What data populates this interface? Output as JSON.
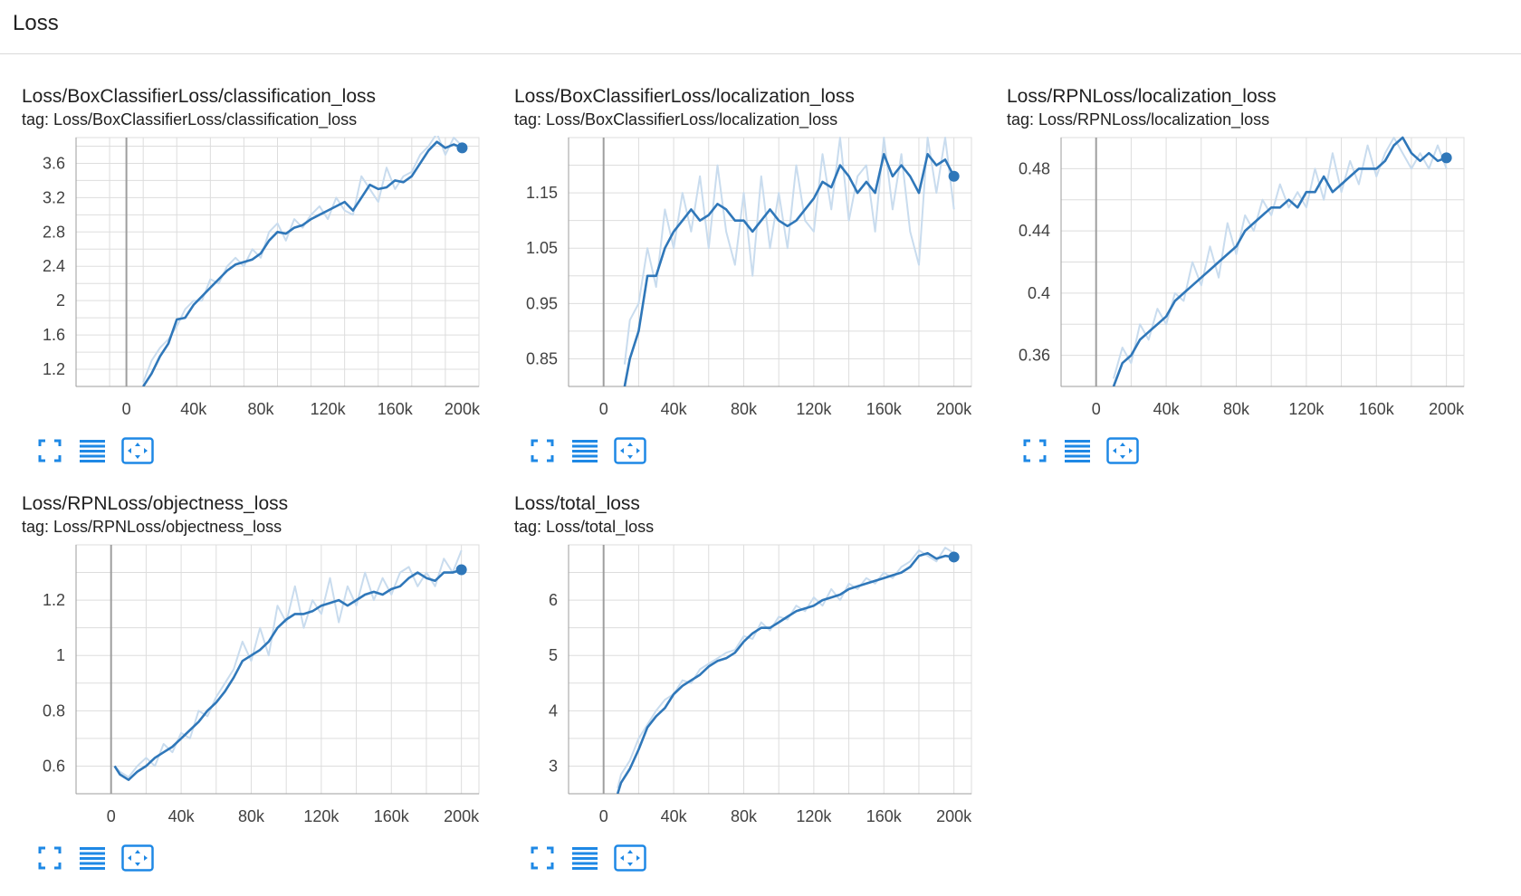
{
  "header": {
    "title": "Loss"
  },
  "colors": {
    "line": "#2f77b9",
    "line_raw": "#c9dcee",
    "grid": "#dddddd",
    "axis": "#9e9e9e",
    "icon": "#1e88e5"
  },
  "icons": [
    "fit-domain-icon",
    "toggle-y-log-icon",
    "expand-chart-icon"
  ],
  "chart_data": [
    {
      "type": "line",
      "title": "Loss/BoxClassifierLoss/classification_loss",
      "tag": "tag: Loss/BoxClassifierLoss/classification_loss",
      "xlim": [
        -30000,
        210000
      ],
      "ylim": [
        1.0,
        3.9
      ],
      "xticks": [
        0,
        40000,
        80000,
        120000,
        160000,
        200000
      ],
      "xtick_labels": [
        "0",
        "40k",
        "80k",
        "120k",
        "160k",
        "200k"
      ],
      "yticks": [
        1.2,
        1.6,
        2.0,
        2.4,
        2.8,
        3.2,
        3.6
      ],
      "ytick_labels": [
        "1.2",
        "1.6",
        "2",
        "2.4",
        "2.8",
        "3.2",
        "3.6"
      ],
      "series": [
        {
          "smoothed": true,
          "x": [
            10000,
            15000,
            20000,
            25000,
            30000,
            35000,
            40000,
            45000,
            50000,
            55000,
            60000,
            65000,
            70000,
            75000,
            80000,
            85000,
            90000,
            95000,
            100000,
            105000,
            110000,
            115000,
            120000,
            125000,
            130000,
            135000,
            140000,
            145000,
            150000,
            155000,
            160000,
            165000,
            170000,
            175000,
            180000,
            185000,
            190000,
            195000,
            200000
          ],
          "y": [
            1.0,
            1.15,
            1.35,
            1.5,
            1.78,
            1.8,
            1.95,
            2.05,
            2.15,
            2.25,
            2.35,
            2.42,
            2.45,
            2.48,
            2.55,
            2.7,
            2.8,
            2.78,
            2.85,
            2.88,
            2.95,
            3.0,
            3.05,
            3.1,
            3.15,
            3.05,
            3.2,
            3.35,
            3.3,
            3.32,
            3.4,
            3.38,
            3.45,
            3.6,
            3.75,
            3.85,
            3.78,
            3.82,
            3.78
          ]
        },
        {
          "smoothed": false,
          "x": [
            10000,
            15000,
            20000,
            25000,
            30000,
            35000,
            40000,
            45000,
            50000,
            55000,
            60000,
            65000,
            70000,
            75000,
            80000,
            85000,
            90000,
            95000,
            100000,
            105000,
            110000,
            115000,
            120000,
            125000,
            130000,
            135000,
            140000,
            145000,
            150000,
            155000,
            160000,
            165000,
            170000,
            175000,
            180000,
            185000,
            190000,
            195000,
            200000
          ],
          "y": [
            1.05,
            1.3,
            1.45,
            1.55,
            1.7,
            1.9,
            2.0,
            2.0,
            2.25,
            2.2,
            2.4,
            2.5,
            2.4,
            2.6,
            2.5,
            2.8,
            2.9,
            2.7,
            2.95,
            2.85,
            3.0,
            3.1,
            2.95,
            3.2,
            3.05,
            3.0,
            3.45,
            3.3,
            3.15,
            3.55,
            3.3,
            3.45,
            3.5,
            3.7,
            3.8,
            3.95,
            3.7,
            3.9,
            3.8
          ]
        }
      ]
    },
    {
      "type": "line",
      "title": "Loss/BoxClassifierLoss/localization_loss",
      "tag": "tag: Loss/BoxClassifierLoss/localization_loss",
      "xlim": [
        -20000,
        210000
      ],
      "ylim": [
        0.8,
        1.25
      ],
      "xticks": [
        0,
        40000,
        80000,
        120000,
        160000,
        200000
      ],
      "xtick_labels": [
        "0",
        "40k",
        "80k",
        "120k",
        "160k",
        "200k"
      ],
      "yticks": [
        0.85,
        0.95,
        1.05,
        1.15
      ],
      "ytick_labels": [
        "0.85",
        "0.95",
        "1.05",
        "1.15"
      ],
      "series": [
        {
          "smoothed": true,
          "x": [
            12000,
            15000,
            20000,
            25000,
            30000,
            35000,
            40000,
            45000,
            50000,
            55000,
            60000,
            65000,
            70000,
            75000,
            80000,
            85000,
            90000,
            95000,
            100000,
            105000,
            110000,
            115000,
            120000,
            125000,
            130000,
            135000,
            140000,
            145000,
            150000,
            155000,
            160000,
            165000,
            170000,
            175000,
            180000,
            185000,
            190000,
            195000,
            200000
          ],
          "y": [
            0.8,
            0.85,
            0.9,
            1.0,
            1.0,
            1.05,
            1.08,
            1.1,
            1.12,
            1.1,
            1.11,
            1.13,
            1.12,
            1.1,
            1.1,
            1.08,
            1.1,
            1.12,
            1.1,
            1.09,
            1.1,
            1.12,
            1.14,
            1.17,
            1.16,
            1.2,
            1.18,
            1.15,
            1.17,
            1.15,
            1.22,
            1.18,
            1.2,
            1.18,
            1.15,
            1.22,
            1.2,
            1.21,
            1.18
          ]
        },
        {
          "smoothed": false,
          "x": [
            12000,
            15000,
            20000,
            25000,
            30000,
            35000,
            40000,
            45000,
            50000,
            55000,
            60000,
            65000,
            70000,
            75000,
            80000,
            85000,
            90000,
            95000,
            100000,
            105000,
            110000,
            115000,
            120000,
            125000,
            130000,
            135000,
            140000,
            145000,
            150000,
            155000,
            160000,
            165000,
            170000,
            175000,
            180000,
            185000,
            190000,
            195000,
            200000
          ],
          "y": [
            0.84,
            0.92,
            0.95,
            1.05,
            0.98,
            1.12,
            1.05,
            1.15,
            1.08,
            1.18,
            1.05,
            1.2,
            1.08,
            1.02,
            1.15,
            1.0,
            1.18,
            1.05,
            1.15,
            1.05,
            1.2,
            1.1,
            1.08,
            1.22,
            1.12,
            1.25,
            1.1,
            1.18,
            1.2,
            1.08,
            1.25,
            1.12,
            1.22,
            1.08,
            1.02,
            1.25,
            1.15,
            1.25,
            1.12
          ]
        }
      ]
    },
    {
      "type": "line",
      "title": "Loss/RPNLoss/localization_loss",
      "tag": "tag: Loss/RPNLoss/localization_loss",
      "xlim": [
        -20000,
        210000
      ],
      "ylim": [
        0.34,
        0.5
      ],
      "xticks": [
        0,
        40000,
        80000,
        120000,
        160000,
        200000
      ],
      "xtick_labels": [
        "0",
        "40k",
        "80k",
        "120k",
        "160k",
        "200k"
      ],
      "yticks": [
        0.36,
        0.4,
        0.44,
        0.48
      ],
      "ytick_labels": [
        "0.36",
        "0.4",
        "0.44",
        "0.48"
      ],
      "series": [
        {
          "smoothed": true,
          "x": [
            10000,
            15000,
            20000,
            25000,
            30000,
            35000,
            40000,
            45000,
            50000,
            55000,
            60000,
            65000,
            70000,
            75000,
            80000,
            85000,
            90000,
            95000,
            100000,
            105000,
            110000,
            115000,
            120000,
            125000,
            130000,
            135000,
            140000,
            145000,
            150000,
            155000,
            160000,
            165000,
            170000,
            175000,
            180000,
            185000,
            190000,
            195000,
            200000
          ],
          "y": [
            0.34,
            0.355,
            0.36,
            0.37,
            0.375,
            0.38,
            0.385,
            0.395,
            0.4,
            0.405,
            0.41,
            0.415,
            0.42,
            0.425,
            0.43,
            0.44,
            0.445,
            0.45,
            0.455,
            0.455,
            0.46,
            0.455,
            0.465,
            0.465,
            0.475,
            0.465,
            0.47,
            0.475,
            0.48,
            0.48,
            0.48,
            0.485,
            0.495,
            0.5,
            0.49,
            0.485,
            0.49,
            0.485,
            0.487
          ]
        },
        {
          "smoothed": false,
          "x": [
            10000,
            15000,
            20000,
            25000,
            30000,
            35000,
            40000,
            45000,
            50000,
            55000,
            60000,
            65000,
            70000,
            75000,
            80000,
            85000,
            90000,
            95000,
            100000,
            105000,
            110000,
            115000,
            120000,
            125000,
            130000,
            135000,
            140000,
            145000,
            150000,
            155000,
            160000,
            165000,
            170000,
            175000,
            180000,
            185000,
            190000,
            195000,
            200000
          ],
          "y": [
            0.345,
            0.365,
            0.355,
            0.38,
            0.37,
            0.39,
            0.38,
            0.4,
            0.395,
            0.42,
            0.405,
            0.43,
            0.41,
            0.445,
            0.425,
            0.45,
            0.44,
            0.46,
            0.45,
            0.47,
            0.455,
            0.465,
            0.455,
            0.48,
            0.46,
            0.49,
            0.465,
            0.485,
            0.47,
            0.495,
            0.475,
            0.49,
            0.5,
            0.49,
            0.48,
            0.49,
            0.48,
            0.495,
            0.48
          ]
        }
      ]
    },
    {
      "type": "line",
      "title": "Loss/RPNLoss/objectness_loss",
      "tag": "tag: Loss/RPNLoss/objectness_loss",
      "xlim": [
        -20000,
        210000
      ],
      "ylim": [
        0.5,
        1.4
      ],
      "xticks": [
        0,
        40000,
        80000,
        120000,
        160000,
        200000
      ],
      "xtick_labels": [
        "0",
        "40k",
        "80k",
        "120k",
        "160k",
        "200k"
      ],
      "yticks": [
        0.6,
        0.8,
        1.0,
        1.2
      ],
      "ytick_labels": [
        "0.6",
        "0.8",
        "1",
        "1.2"
      ],
      "series": [
        {
          "smoothed": true,
          "x": [
            2000,
            5000,
            10000,
            15000,
            20000,
            25000,
            30000,
            35000,
            40000,
            45000,
            50000,
            55000,
            60000,
            65000,
            70000,
            75000,
            80000,
            85000,
            90000,
            95000,
            100000,
            105000,
            110000,
            115000,
            120000,
            125000,
            130000,
            135000,
            140000,
            145000,
            150000,
            155000,
            160000,
            165000,
            170000,
            175000,
            180000,
            185000,
            190000,
            195000,
            200000
          ],
          "y": [
            0.6,
            0.57,
            0.55,
            0.58,
            0.6,
            0.63,
            0.65,
            0.67,
            0.7,
            0.73,
            0.76,
            0.8,
            0.83,
            0.87,
            0.92,
            0.98,
            1.0,
            1.02,
            1.05,
            1.1,
            1.13,
            1.15,
            1.15,
            1.16,
            1.18,
            1.19,
            1.2,
            1.18,
            1.2,
            1.22,
            1.23,
            1.22,
            1.24,
            1.25,
            1.28,
            1.3,
            1.28,
            1.27,
            1.3,
            1.3,
            1.31
          ]
        },
        {
          "smoothed": false,
          "x": [
            2000,
            5000,
            10000,
            15000,
            20000,
            25000,
            30000,
            35000,
            40000,
            45000,
            50000,
            55000,
            60000,
            65000,
            70000,
            75000,
            80000,
            85000,
            90000,
            95000,
            100000,
            105000,
            110000,
            115000,
            120000,
            125000,
            130000,
            135000,
            140000,
            145000,
            150000,
            155000,
            160000,
            165000,
            170000,
            175000,
            180000,
            185000,
            190000,
            195000,
            200000
          ],
          "y": [
            0.6,
            0.58,
            0.56,
            0.6,
            0.63,
            0.6,
            0.68,
            0.65,
            0.72,
            0.7,
            0.8,
            0.78,
            0.85,
            0.9,
            0.95,
            1.05,
            0.98,
            1.1,
            1.0,
            1.18,
            1.12,
            1.25,
            1.1,
            1.2,
            1.15,
            1.28,
            1.12,
            1.25,
            1.18,
            1.3,
            1.2,
            1.28,
            1.22,
            1.3,
            1.32,
            1.25,
            1.3,
            1.25,
            1.35,
            1.3,
            1.38
          ]
        }
      ]
    },
    {
      "type": "line",
      "title": "Loss/total_loss",
      "tag": "tag: Loss/total_loss",
      "xlim": [
        -20000,
        210000
      ],
      "ylim": [
        2.5,
        7.0
      ],
      "xticks": [
        0,
        40000,
        80000,
        120000,
        160000,
        200000
      ],
      "xtick_labels": [
        "0",
        "40k",
        "80k",
        "120k",
        "160k",
        "200k"
      ],
      "yticks": [
        3,
        4,
        5,
        6
      ],
      "ytick_labels": [
        "3",
        "4",
        "5",
        "6"
      ],
      "series": [
        {
          "smoothed": true,
          "x": [
            8000,
            10000,
            15000,
            20000,
            25000,
            30000,
            35000,
            40000,
            45000,
            50000,
            55000,
            60000,
            65000,
            70000,
            75000,
            80000,
            85000,
            90000,
            95000,
            100000,
            105000,
            110000,
            115000,
            120000,
            125000,
            130000,
            135000,
            140000,
            145000,
            150000,
            155000,
            160000,
            165000,
            170000,
            175000,
            180000,
            185000,
            190000,
            195000,
            200000
          ],
          "y": [
            2.5,
            2.7,
            2.95,
            3.3,
            3.7,
            3.9,
            4.05,
            4.3,
            4.45,
            4.55,
            4.65,
            4.8,
            4.9,
            4.95,
            5.05,
            5.25,
            5.4,
            5.5,
            5.5,
            5.6,
            5.7,
            5.8,
            5.85,
            5.9,
            6.0,
            6.05,
            6.1,
            6.2,
            6.25,
            6.3,
            6.35,
            6.4,
            6.45,
            6.5,
            6.6,
            6.8,
            6.85,
            6.75,
            6.8,
            6.78
          ]
        },
        {
          "smoothed": false,
          "x": [
            8000,
            10000,
            15000,
            20000,
            25000,
            30000,
            35000,
            40000,
            45000,
            50000,
            55000,
            60000,
            65000,
            70000,
            75000,
            80000,
            85000,
            90000,
            95000,
            100000,
            105000,
            110000,
            115000,
            120000,
            125000,
            130000,
            135000,
            140000,
            145000,
            150000,
            155000,
            160000,
            165000,
            170000,
            175000,
            180000,
            185000,
            190000,
            195000,
            200000
          ],
          "y": [
            2.6,
            2.85,
            3.1,
            3.5,
            3.75,
            4.0,
            4.2,
            4.3,
            4.55,
            4.5,
            4.75,
            4.85,
            4.95,
            5.05,
            5.1,
            5.35,
            5.3,
            5.6,
            5.45,
            5.7,
            5.65,
            5.9,
            5.8,
            6.05,
            5.9,
            6.2,
            6.0,
            6.3,
            6.2,
            6.4,
            6.3,
            6.5,
            6.4,
            6.6,
            6.7,
            6.9,
            6.8,
            6.7,
            6.95,
            6.85
          ]
        }
      ]
    }
  ]
}
